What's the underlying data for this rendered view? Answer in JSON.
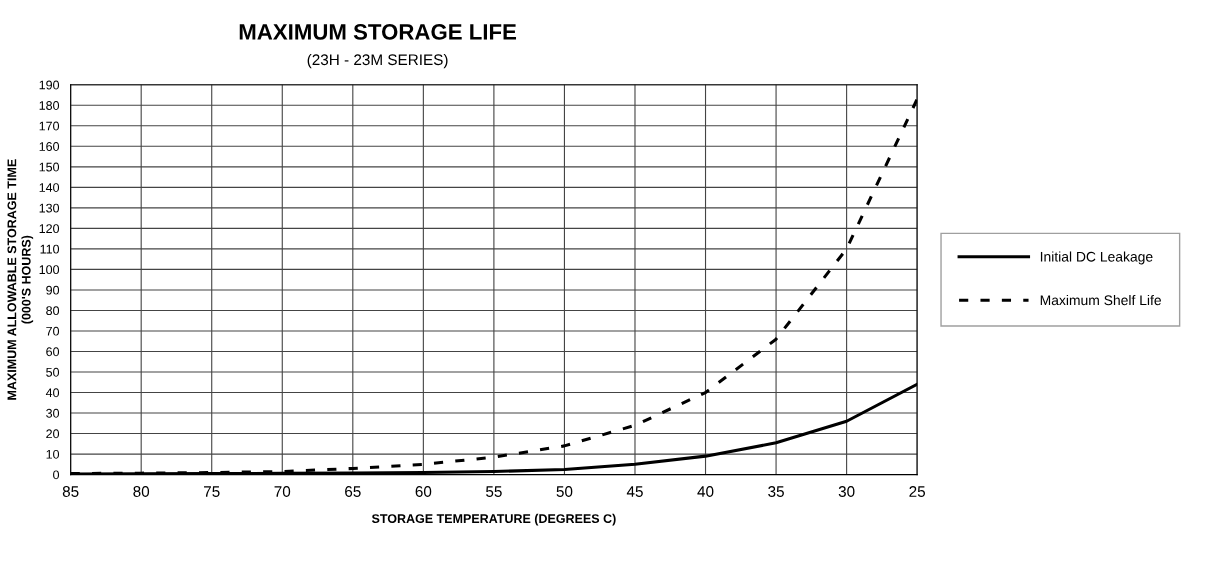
{
  "chart_data": {
    "type": "line",
    "title": "MAXIMUM STORAGE LIFE",
    "subtitle": "(23H - 23M SERIES)",
    "xlabel": "STORAGE TEMPERATURE (DEGREES C)",
    "ylabel": "MAXIMUM ALLOWABLE STORAGE TIME\n(000'S HOURS)",
    "x": [
      85,
      80,
      75,
      70,
      65,
      60,
      55,
      50,
      45,
      40,
      35,
      30,
      25
    ],
    "series": [
      {
        "name": "Initial DC Leakage",
        "color": "#000000",
        "line_style": "solid",
        "values": [
          0.3,
          0.4,
          0.5,
          0.6,
          0.8,
          1,
          1.5,
          2.5,
          5,
          9,
          15.5,
          26,
          44
        ]
      },
      {
        "name": "Maximum Shelf Life",
        "color": "#000000",
        "line_style": "dashed",
        "values": [
          0.5,
          0.7,
          1,
          1.5,
          3,
          5,
          8.5,
          14,
          24,
          40,
          66,
          110,
          183
        ]
      }
    ],
    "xlim": [
      85,
      25
    ],
    "xticks": [
      85,
      80,
      75,
      70,
      65,
      60,
      55,
      50,
      45,
      40,
      35,
      30,
      25
    ],
    "ylim": [
      0,
      190
    ],
    "yticks": [
      0,
      10,
      20,
      30,
      40,
      50,
      60,
      70,
      80,
      90,
      100,
      110,
      120,
      130,
      140,
      150,
      160,
      170,
      180,
      190
    ],
    "grid": true,
    "legend": "right",
    "marker": "none"
  }
}
